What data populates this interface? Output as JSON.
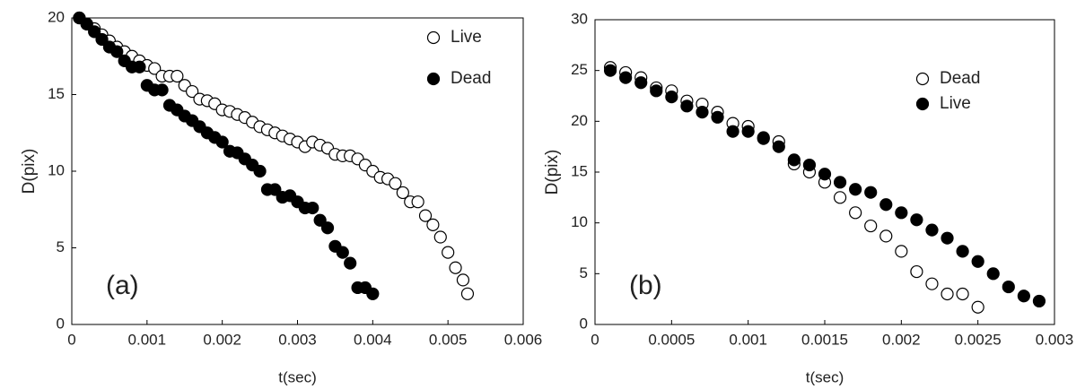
{
  "chart_data": [
    {
      "type": "scatter",
      "xlabel": "t(sec)",
      "ylabel": "D(pix)",
      "annotation": "(a)",
      "legend": "upper right",
      "xlim": [
        0,
        0.006
      ],
      "xticks": [
        0,
        0.001,
        0.002,
        0.003,
        0.004,
        0.005,
        0.006
      ],
      "ylim": [
        0,
        20
      ],
      "yticks": [
        0,
        5,
        10,
        15,
        20
      ],
      "series": [
        {
          "name": "Live",
          "color": "#000000",
          "filled": false,
          "x": [
            0.0001,
            0.0002,
            0.0003,
            0.0004,
            0.0005,
            0.0006,
            0.0007,
            0.0008,
            0.0009,
            0.001,
            0.0011,
            0.0012,
            0.0013,
            0.0014,
            0.0015,
            0.0016,
            0.0017,
            0.0018,
            0.0019,
            0.002,
            0.0021,
            0.0022,
            0.0023,
            0.0024,
            0.0025,
            0.0026,
            0.0027,
            0.0028,
            0.0029,
            0.003,
            0.0031,
            0.0032,
            0.0033,
            0.0034,
            0.0035,
            0.0036,
            0.0037,
            0.0038,
            0.0039,
            0.004,
            0.0041,
            0.0042,
            0.0043,
            0.0044,
            0.0045,
            0.0046,
            0.0047,
            0.0048,
            0.0049,
            0.005,
            0.0051,
            0.0052,
            0.00526
          ],
          "values": [
            20,
            19.6,
            19.3,
            18.9,
            18.5,
            18.1,
            17.8,
            17.5,
            17.2,
            16.9,
            16.7,
            16.2,
            16.2,
            16.2,
            15.6,
            15.2,
            14.7,
            14.6,
            14.4,
            14.0,
            13.9,
            13.7,
            13.5,
            13.2,
            12.9,
            12.7,
            12.5,
            12.3,
            12.1,
            11.9,
            11.6,
            11.9,
            11.7,
            11.5,
            11.1,
            11.0,
            11.0,
            10.8,
            10.4,
            10.0,
            9.6,
            9.5,
            9.2,
            8.6,
            8.0,
            8.0,
            7.1,
            6.5,
            5.7,
            4.7,
            3.7,
            2.9,
            2.0
          ]
        },
        {
          "name": "Dead",
          "color": "#000000",
          "filled": true,
          "x": [
            0.0001,
            0.0002,
            0.0003,
            0.0004,
            0.0005,
            0.0006,
            0.0007,
            0.0008,
            0.0009,
            0.001,
            0.0011,
            0.0012,
            0.0013,
            0.0014,
            0.0015,
            0.0016,
            0.0017,
            0.0018,
            0.0019,
            0.002,
            0.0021,
            0.0022,
            0.0023,
            0.0024,
            0.0025,
            0.0026,
            0.0027,
            0.0028,
            0.0029,
            0.003,
            0.0031,
            0.0032,
            0.0033,
            0.0034,
            0.0035,
            0.0036,
            0.0037,
            0.0038,
            0.0039,
            0.004
          ],
          "values": [
            20,
            19.6,
            19.1,
            18.6,
            18.1,
            17.8,
            17.2,
            16.8,
            16.8,
            15.6,
            15.3,
            15.3,
            14.3,
            14.0,
            13.6,
            13.3,
            12.9,
            12.5,
            12.2,
            11.9,
            11.3,
            11.2,
            10.8,
            10.4,
            10.0,
            8.8,
            8.8,
            8.3,
            8.4,
            8.0,
            7.6,
            7.6,
            6.8,
            6.3,
            5.1,
            4.7,
            4.0,
            2.4,
            2.4,
            2.0
          ]
        }
      ]
    },
    {
      "type": "scatter",
      "xlabel": "t(sec)",
      "ylabel": "D(pix)",
      "annotation": "(b)",
      "legend": "center right",
      "xlim": [
        0,
        0.003
      ],
      "xticks": [
        0,
        0.0005,
        0.001,
        0.0015,
        0.002,
        0.0025,
        0.003
      ],
      "ylim": [
        0,
        30
      ],
      "yticks": [
        0,
        5,
        10,
        15,
        20,
        25,
        30
      ],
      "series": [
        {
          "name": "Dead",
          "color": "#000000",
          "filled": false,
          "x": [
            0.0001,
            0.0002,
            0.0003,
            0.0004,
            0.0005,
            0.0006,
            0.0007,
            0.0008,
            0.0009,
            0.001,
            0.0011,
            0.0012,
            0.0013,
            0.0014,
            0.0015,
            0.0016,
            0.0017,
            0.0018,
            0.0019,
            0.002,
            0.0021,
            0.0022,
            0.0023,
            0.0024,
            0.0025
          ],
          "values": [
            25.3,
            24.8,
            24.3,
            23.3,
            23.0,
            22.0,
            21.7,
            20.9,
            19.8,
            19.5,
            18.3,
            18.0,
            15.8,
            15.0,
            14.0,
            12.5,
            11.0,
            9.7,
            8.7,
            7.2,
            5.2,
            4.0,
            3.0,
            3.0,
            1.7
          ]
        },
        {
          "name": "Live",
          "color": "#000000",
          "filled": true,
          "x": [
            0.0001,
            0.0002,
            0.0003,
            0.0004,
            0.0005,
            0.0006,
            0.0007,
            0.0008,
            0.0009,
            0.001,
            0.0011,
            0.0012,
            0.0013,
            0.0014,
            0.0015,
            0.0016,
            0.0017,
            0.0018,
            0.0019,
            0.002,
            0.0021,
            0.0022,
            0.0023,
            0.0024,
            0.0025,
            0.0026,
            0.0027,
            0.0028,
            0.0029
          ],
          "values": [
            25.0,
            24.3,
            23.8,
            23.0,
            22.4,
            21.5,
            20.9,
            20.4,
            19.0,
            19.0,
            18.4,
            17.5,
            16.2,
            15.7,
            14.8,
            14.0,
            13.3,
            13.0,
            11.8,
            11.0,
            10.3,
            9.3,
            8.5,
            7.2,
            6.2,
            5.0,
            3.7,
            2.8,
            2.3
          ]
        }
      ]
    }
  ]
}
